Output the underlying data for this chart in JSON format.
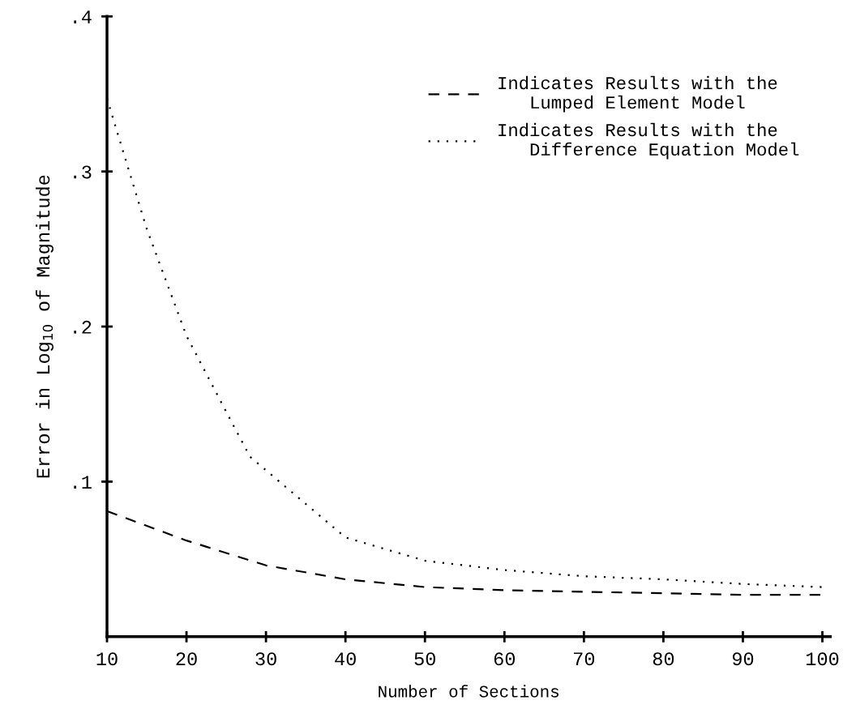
{
  "chart_data": {
    "type": "line",
    "xlabel": "Number of Sections",
    "ylabel": "Error in Log$_{10}$ of Magnitude",
    "xlim": [
      10,
      101
    ],
    "xticks": [
      10,
      20,
      30,
      40,
      50,
      60,
      70,
      80,
      90,
      100
    ],
    "ylim": [
      0,
      0.4
    ],
    "yticks": [
      {
        "value": 0.1,
        "label": ".1"
      },
      {
        "value": 0.2,
        "label": ".2"
      },
      {
        "value": 0.3,
        "label": ".3"
      },
      {
        "value": 0.4,
        "label": ".4"
      }
    ],
    "grid": false,
    "legend": "top right",
    "marker": "none",
    "series": [
      {
        "name": "Indicates Results with the\n   Lumped Element Model",
        "color": "#000000",
        "line_style": "dashed",
        "x": [
          10,
          20,
          30,
          40,
          50,
          60,
          70,
          80,
          90,
          100
        ],
        "values": [
          0.081,
          0.062,
          0.046,
          0.037,
          0.032,
          0.03,
          0.029,
          0.028,
          0.027,
          0.027
        ]
      },
      {
        "name": "Indicates Results with the\n   Difference Equation Model",
        "color": "#000000",
        "line_style": "dotted",
        "x": [
          10,
          15,
          20,
          25,
          28,
          40,
          50,
          60,
          70,
          80,
          90,
          100
        ],
        "values": [
          0.347,
          0.263,
          0.194,
          0.145,
          0.116,
          0.064,
          0.049,
          0.043,
          0.039,
          0.037,
          0.034,
          0.032
        ]
      }
    ]
  }
}
